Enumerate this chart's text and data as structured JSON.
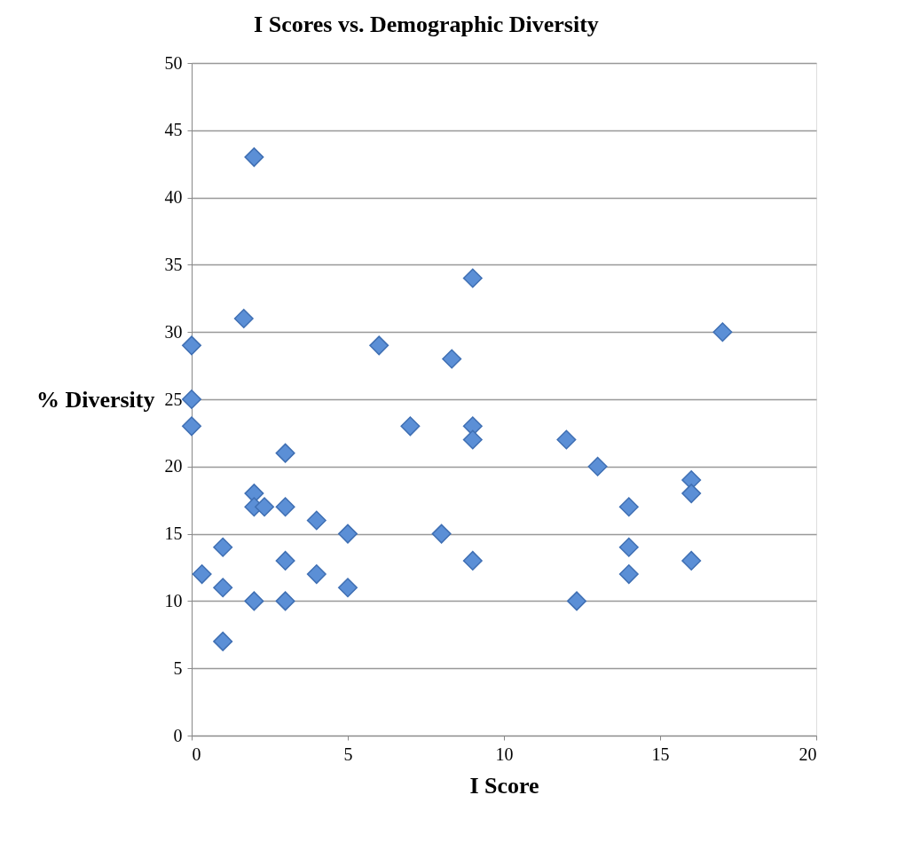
{
  "chart_data": {
    "type": "scatter",
    "title": "I Scores vs. Demographic Diversity",
    "xlabel": "I Score",
    "ylabel": "% Diversity",
    "x": [
      0,
      0,
      0,
      0.33,
      1,
      1,
      1,
      1.67,
      2,
      2,
      2,
      2.33,
      2,
      3,
      3,
      3,
      3,
      4,
      4,
      5,
      5,
      6,
      7,
      8.33,
      8,
      9,
      9,
      9,
      9,
      12,
      13,
      12.33,
      14,
      14,
      14,
      16,
      16,
      16,
      17
    ],
    "series": [
      {
        "color": "#5b8fd6",
        "values": [
          29,
          25,
          23,
          12,
          14,
          11,
          7,
          31,
          43,
          18,
          17,
          17,
          10,
          21,
          17,
          13,
          10,
          16,
          12,
          15,
          11,
          29,
          23,
          28,
          15,
          34,
          23,
          22,
          13,
          22,
          20,
          10,
          17,
          14,
          12,
          19,
          18,
          13,
          30
        ]
      }
    ],
    "xlim": [
      0,
      20
    ],
    "xticks": [
      0,
      5,
      10,
      15,
      20
    ],
    "ylim": [
      0,
      50
    ],
    "yticks": [
      0,
      5,
      10,
      15,
      20,
      25,
      30,
      35,
      40,
      45,
      50
    ],
    "grid": "y",
    "marker": "diamond"
  }
}
